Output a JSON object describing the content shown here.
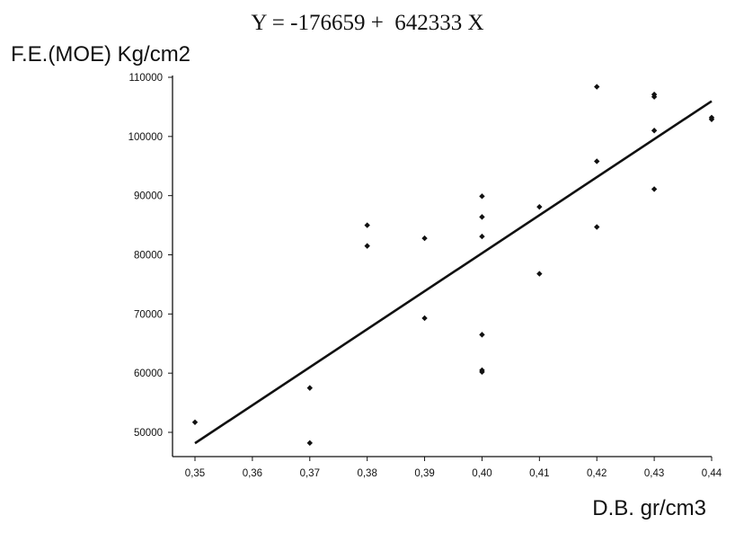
{
  "chart_data": {
    "type": "scatter",
    "title": "Y = -176659 +  642333 X",
    "ylabel": "F.E.(MOE) Kg/cm2",
    "xlabel": "D.B. gr/cm3",
    "xlim": [
      0.35,
      0.44
    ],
    "ylim": [
      45000,
      110000
    ],
    "x_ticks": [
      0.35,
      0.36,
      0.37,
      0.38,
      0.39,
      0.4,
      0.41,
      0.42,
      0.43,
      0.44
    ],
    "x_tick_labels": [
      "0,35",
      "0,36",
      "0,37",
      "0,38",
      "0,39",
      "0,40",
      "0,41",
      "0,42",
      "0,43",
      "0,44"
    ],
    "y_ticks": [
      50000,
      60000,
      70000,
      80000,
      90000,
      100000,
      110000
    ],
    "y_tick_labels": [
      "50000",
      "60000",
      "70000",
      "80000",
      "90000",
      "100000",
      "110000"
    ],
    "grid": false,
    "points": [
      {
        "x": 0.35,
        "y": 51700
      },
      {
        "x": 0.37,
        "y": 57500
      },
      {
        "x": 0.37,
        "y": 48200
      },
      {
        "x": 0.38,
        "y": 85000
      },
      {
        "x": 0.38,
        "y": 81500
      },
      {
        "x": 0.39,
        "y": 82800
      },
      {
        "x": 0.39,
        "y": 69300
      },
      {
        "x": 0.4,
        "y": 89900
      },
      {
        "x": 0.4,
        "y": 86400
      },
      {
        "x": 0.4,
        "y": 83100
      },
      {
        "x": 0.4,
        "y": 66500
      },
      {
        "x": 0.4,
        "y": 60500
      },
      {
        "x": 0.4,
        "y": 60200
      },
      {
        "x": 0.41,
        "y": 88100
      },
      {
        "x": 0.41,
        "y": 76800
      },
      {
        "x": 0.42,
        "y": 108400
      },
      {
        "x": 0.42,
        "y": 95800
      },
      {
        "x": 0.42,
        "y": 84700
      },
      {
        "x": 0.43,
        "y": 107100
      },
      {
        "x": 0.43,
        "y": 106700
      },
      {
        "x": 0.43,
        "y": 101000
      },
      {
        "x": 0.43,
        "y": 91100
      },
      {
        "x": 0.44,
        "y": 103200
      },
      {
        "x": 0.44,
        "y": 102900
      }
    ],
    "regression": {
      "intercept": -176659,
      "slope": 642333
    }
  }
}
